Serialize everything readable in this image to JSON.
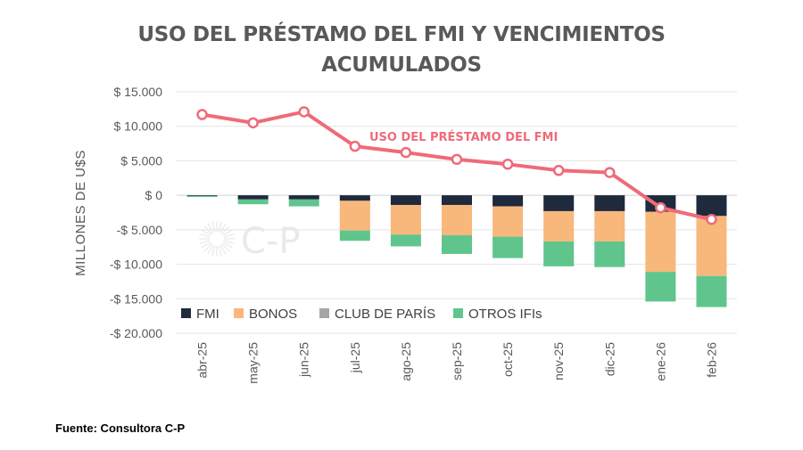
{
  "chart_data": {
    "type": "bar",
    "title_lines": [
      "USO DEL PRÉSTAMO DEL FMI Y VENCIMIENTOS",
      "ACUMULADOS"
    ],
    "ylabel": "MILLONES DE U$S",
    "ylim": [
      -20000,
      15000
    ],
    "yticks": [
      15000,
      10000,
      5000,
      0,
      -5000,
      -10000,
      -15000,
      -20000
    ],
    "ytick_labels": [
      "$ 15.000",
      "$ 10.000",
      "$ 5.000",
      "$ 0",
      "-$ 5.000",
      "-$ 10.000",
      "-$ 15.000",
      "-$ 20.000"
    ],
    "categories": [
      "abr-25",
      "may-25",
      "jun-25",
      "jul-25",
      "ago-25",
      "sep-25",
      "oct-25",
      "nov-25",
      "dic-25",
      "ene-26",
      "feb-26"
    ],
    "stacked": true,
    "grid": true,
    "legend_position": "bottom-left",
    "series": [
      {
        "name": "FMI",
        "color": "#1f2a3d",
        "values": [
          -100,
          -600,
          -600,
          -800,
          -1400,
          -1400,
          -1600,
          -2300,
          -2300,
          -2400,
          -3000
        ]
      },
      {
        "name": "BONOS",
        "color": "#f8b77b",
        "values": [
          0,
          0,
          0,
          -4300,
          -4300,
          -4400,
          -4400,
          -4400,
          -4400,
          -8700,
          -8700
        ]
      },
      {
        "name": "CLUB DE PARÍS",
        "color": "#a6a6a6",
        "values": [
          0,
          0,
          0,
          0,
          0,
          0,
          0,
          0,
          0,
          0,
          0
        ]
      },
      {
        "name": "OTROS IFIs",
        "color": "#5fc58c",
        "values": [
          -150,
          -700,
          -1000,
          -1500,
          -1700,
          -2700,
          -3100,
          -3600,
          -3700,
          -4300,
          -4500
        ]
      }
    ],
    "line_series": {
      "name": "USO DEL PRÉSTAMO DEL FMI",
      "color": "#ee6b79",
      "values": [
        11700,
        10500,
        12100,
        7100,
        6200,
        5200,
        4500,
        3600,
        3300,
        -1800,
        -3500
      ]
    }
  },
  "watermark": "C-P",
  "source": "Fuente: Consultora C-P"
}
